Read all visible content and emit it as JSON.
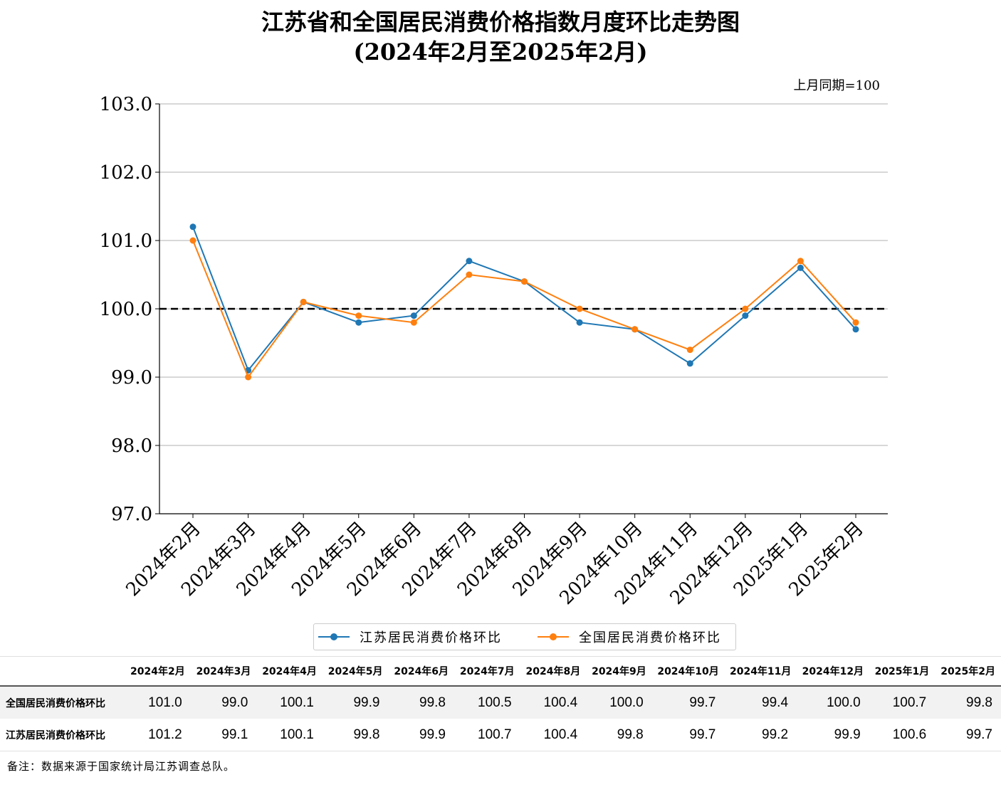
{
  "title_line1": "江苏省和全国居民消费价格指数月度环比走势图",
  "title_line2": "(2024年2月至2025年2月)",
  "unit_label": "上月同期=100",
  "chart_data": {
    "type": "line",
    "categories": [
      "2024年2月",
      "2024年3月",
      "2024年4月",
      "2024年5月",
      "2024年6月",
      "2024年7月",
      "2024年8月",
      "2024年9月",
      "2024年10月",
      "2024年11月",
      "2024年12月",
      "2025年1月",
      "2025年2月"
    ],
    "series": [
      {
        "name": "江苏居民消费价格环比",
        "color": "#1f77b4",
        "values": [
          101.2,
          99.1,
          100.1,
          99.8,
          99.9,
          100.7,
          100.4,
          99.8,
          99.7,
          99.2,
          99.9,
          100.6,
          99.7
        ]
      },
      {
        "name": "全国居民消费价格环比",
        "color": "#ff7f0e",
        "values": [
          101.0,
          99.0,
          100.1,
          99.9,
          99.8,
          100.5,
          100.4,
          100.0,
          99.7,
          99.4,
          100.0,
          100.7,
          99.8
        ]
      }
    ],
    "ylim": [
      97.0,
      103.0
    ],
    "yticks": [
      "97.0",
      "98.0",
      "99.0",
      "100.0",
      "101.0",
      "102.0",
      "103.0"
    ],
    "reference_line": 100.0,
    "grid": "horizontal",
    "legend_position": "bottom-center"
  },
  "legend": [
    {
      "label": "江苏居民消费价格环比",
      "color": "#1f77b4"
    },
    {
      "label": "全国居民消费价格环比",
      "color": "#ff7f0e"
    }
  ],
  "table": {
    "headers": [
      "2024年2月",
      "2024年3月",
      "2024年4月",
      "2024年5月",
      "2024年6月",
      "2024年7月",
      "2024年8月",
      "2024年9月",
      "2024年10月",
      "2024年11月",
      "2024年12月",
      "2025年1月",
      "2025年2月"
    ],
    "rows": [
      {
        "label": "全国居民消费价格环比",
        "values": [
          "101.0",
          "99.0",
          "100.1",
          "99.9",
          "99.8",
          "100.5",
          "100.4",
          "100.0",
          "99.7",
          "99.4",
          "100.0",
          "100.7",
          "99.8"
        ]
      },
      {
        "label": "江苏居民消费价格环比",
        "values": [
          "101.2",
          "99.1",
          "100.1",
          "99.8",
          "99.9",
          "100.7",
          "100.4",
          "99.8",
          "99.7",
          "99.2",
          "99.9",
          "100.6",
          "99.7"
        ]
      }
    ]
  },
  "note": "备注：数据来源于国家统计局江苏调查总队。"
}
